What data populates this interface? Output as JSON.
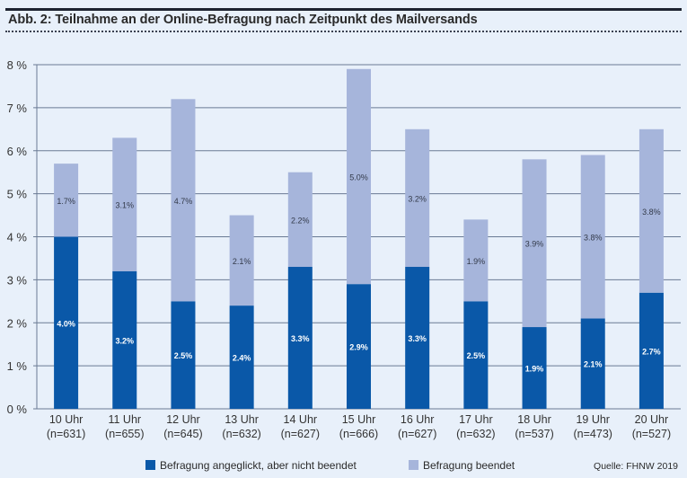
{
  "header": {
    "title": "Abb. 2: Teilnahme an der Online-Befragung nach Zeitpunkt des Mailversands"
  },
  "source": "Quelle: FHNW 2019",
  "chart_data": {
    "type": "bar",
    "stacked": true,
    "title": "Abb. 2: Teilnahme an der Online-Befragung nach Zeitpunkt des Mailversands",
    "xlabel": "",
    "ylabel": "",
    "ylim": [
      0,
      8
    ],
    "yticks": [
      "0 %",
      "1 %",
      "2 %",
      "3 %",
      "4 %",
      "5 %",
      "6 %",
      "7 %",
      "8 %"
    ],
    "grid": true,
    "legend_position": "bottom",
    "categories": [
      "10 Uhr",
      "11 Uhr",
      "12 Uhr",
      "13 Uhr",
      "14 Uhr",
      "15 Uhr",
      "16 Uhr",
      "17 Uhr",
      "18 Uhr",
      "19 Uhr",
      "20 Uhr"
    ],
    "category_sublabels": [
      "(n=631)",
      "(n=655)",
      "(n=645)",
      "(n=632)",
      "(n=627)",
      "(n=666)",
      "(n=627)",
      "(n=632)",
      "(n=537)",
      "(n=473)",
      "(n=527)"
    ],
    "series": [
      {
        "name": "Befragung angeglickt, aber nicht beendet",
        "color": "#0a58a8",
        "values": [
          4.0,
          3.2,
          2.5,
          2.4,
          3.3,
          2.9,
          3.3,
          2.5,
          1.9,
          2.1,
          2.7
        ],
        "labels": [
          "4.0%",
          "3.2%",
          "2.5%",
          "2.4%",
          "3.3%",
          "2.9%",
          "3.3%",
          "2.5%",
          "1.9%",
          "2.1%",
          "2.7%"
        ]
      },
      {
        "name": "Befragung beendet",
        "color": "#a6b5db",
        "values": [
          1.7,
          3.1,
          4.7,
          2.1,
          2.2,
          5.0,
          3.2,
          1.9,
          3.9,
          3.8,
          3.8
        ],
        "labels": [
          "1.7%",
          "3.1%",
          "4.7%",
          "2.1%",
          "2.2%",
          "5.0%",
          "3.2%",
          "1.9%",
          "3.9%",
          "3.8%",
          "3.8%"
        ]
      }
    ]
  }
}
